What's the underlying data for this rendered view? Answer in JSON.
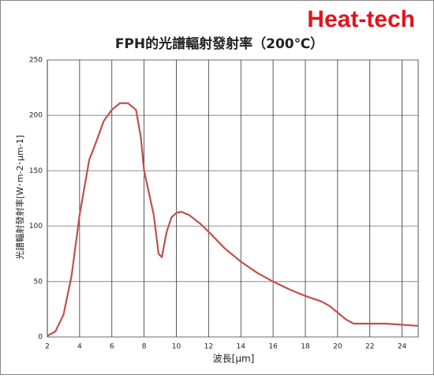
{
  "brand": "Heat-tech",
  "chart_data": {
    "type": "line",
    "title": "FPH的光譜輻射發射率（200℃）",
    "x_label": "波長[μm]",
    "y_label": "光譜輻射發射率[W･m-2･μm-1]",
    "x": [
      2,
      2.5,
      3,
      3.5,
      4,
      4.3,
      4.6,
      5,
      5.5,
      6,
      6.5,
      7,
      7.5,
      7.8,
      8,
      8.3,
      8.6,
      8.9,
      9.1,
      9.4,
      9.7,
      10,
      10.3,
      10.8,
      11.5,
      12,
      13,
      14,
      15,
      16,
      17,
      18,
      19,
      19.5,
      20,
      20.5,
      21,
      22,
      23,
      24,
      25
    ],
    "series": [
      {
        "name": "FPH",
        "color": "#c0504d",
        "values": [
          1,
          5,
          20,
          55,
          110,
          135,
          160,
          175,
          195,
          205,
          211,
          211,
          205,
          180,
          150,
          130,
          110,
          75,
          72,
          95,
          108,
          112,
          113,
          110,
          102,
          95,
          80,
          68,
          58,
          50,
          43,
          37,
          32,
          28,
          22,
          16,
          12,
          12,
          12,
          11,
          10
        ]
      }
    ],
    "xlim": [
      2,
      25
    ],
    "xticks": [
      2,
      4,
      6,
      8,
      10,
      12,
      14,
      16,
      18,
      20,
      22,
      24
    ],
    "ylim": [
      0,
      250
    ],
    "yticks": [
      0,
      50,
      100,
      150,
      200,
      250
    ],
    "grid": true
  }
}
